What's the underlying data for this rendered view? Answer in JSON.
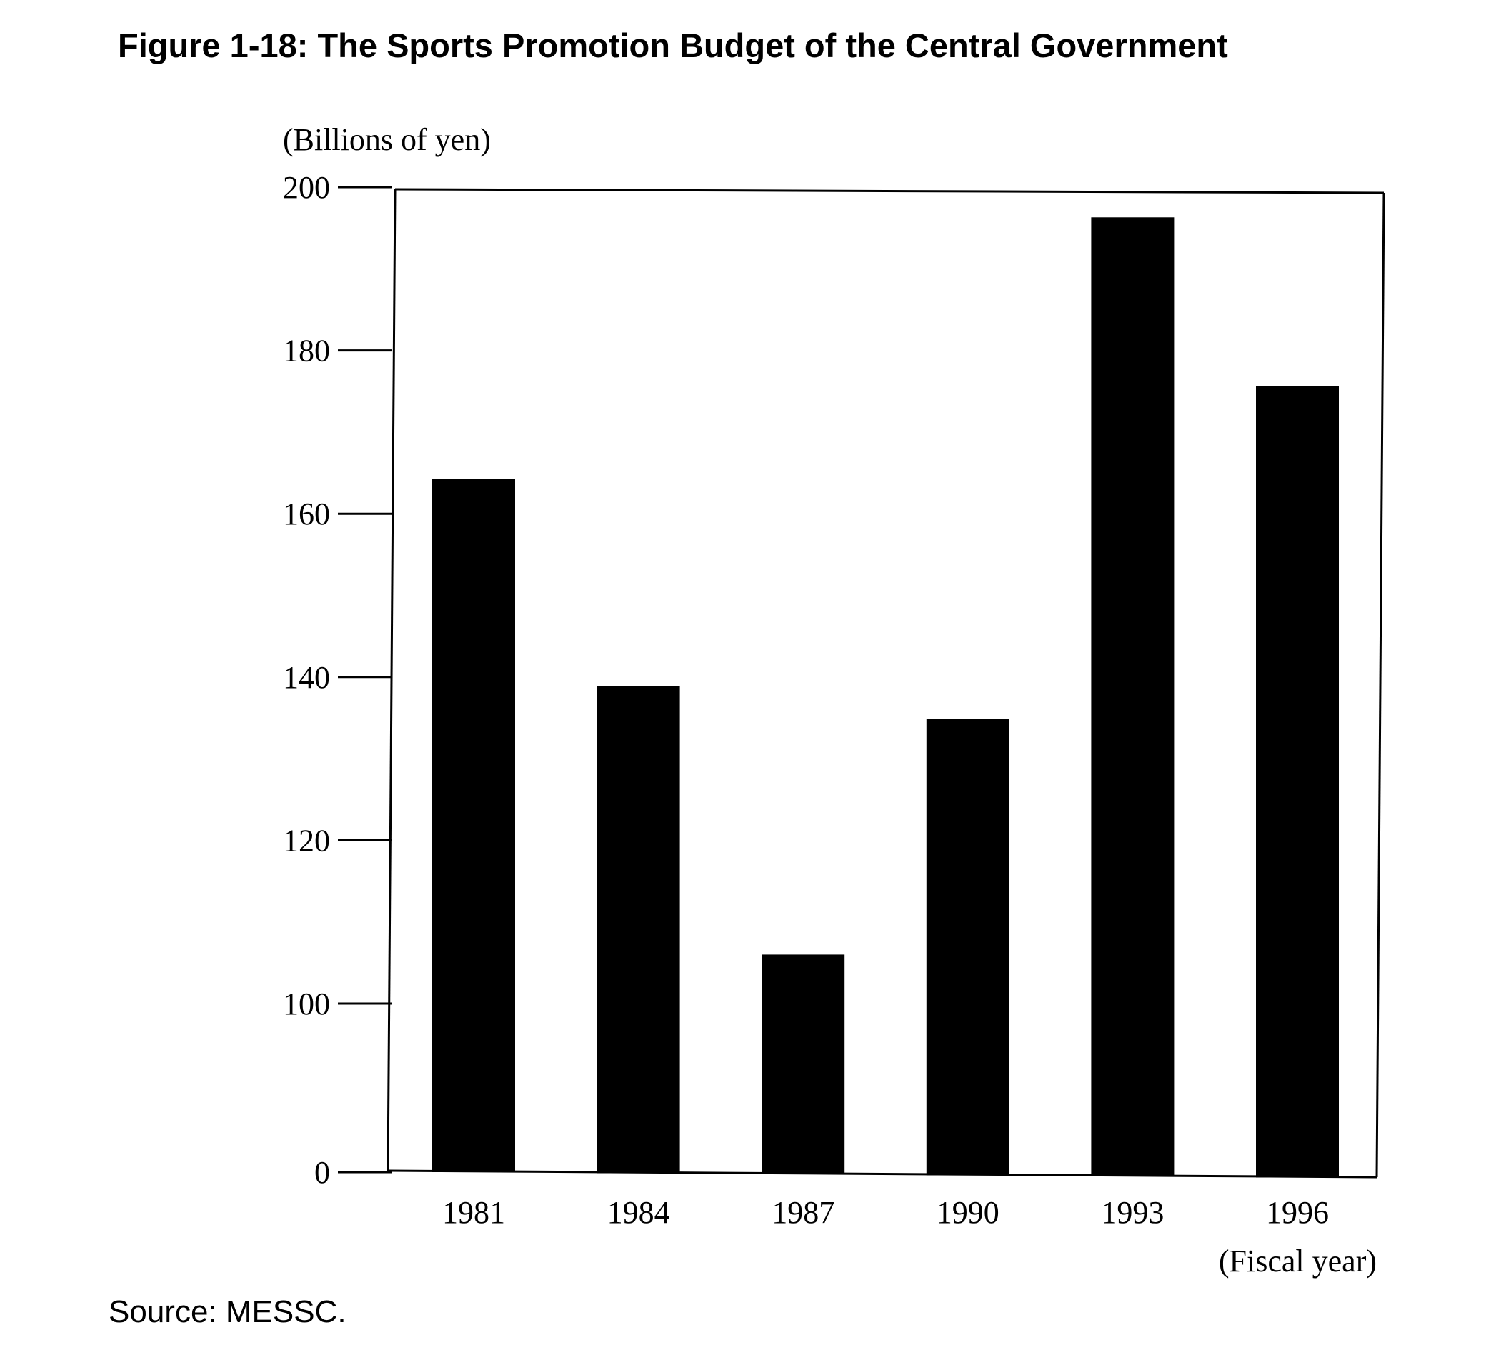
{
  "chart_data": {
    "type": "bar",
    "title": "Figure 1-18: The Sports Promotion Budget of the Central Government",
    "ylabel": "(Billions of yen)",
    "xlabel": "(Fiscal year)",
    "categories": [
      "1981",
      "1984",
      "1987",
      "1990",
      "1993",
      "1996"
    ],
    "values": [
      164.3,
      138.9,
      106.0,
      134.9,
      196.3,
      175.6
    ],
    "yticks": [
      "0",
      "100",
      "120",
      "140",
      "160",
      "180",
      "200"
    ],
    "ylim": [
      0,
      200
    ],
    "axis_note": "non-linear y-axis: 0 then 100 to 200 in steps of 20",
    "grid": false,
    "bar_color": "#000000"
  },
  "source": "Source: MESSC."
}
